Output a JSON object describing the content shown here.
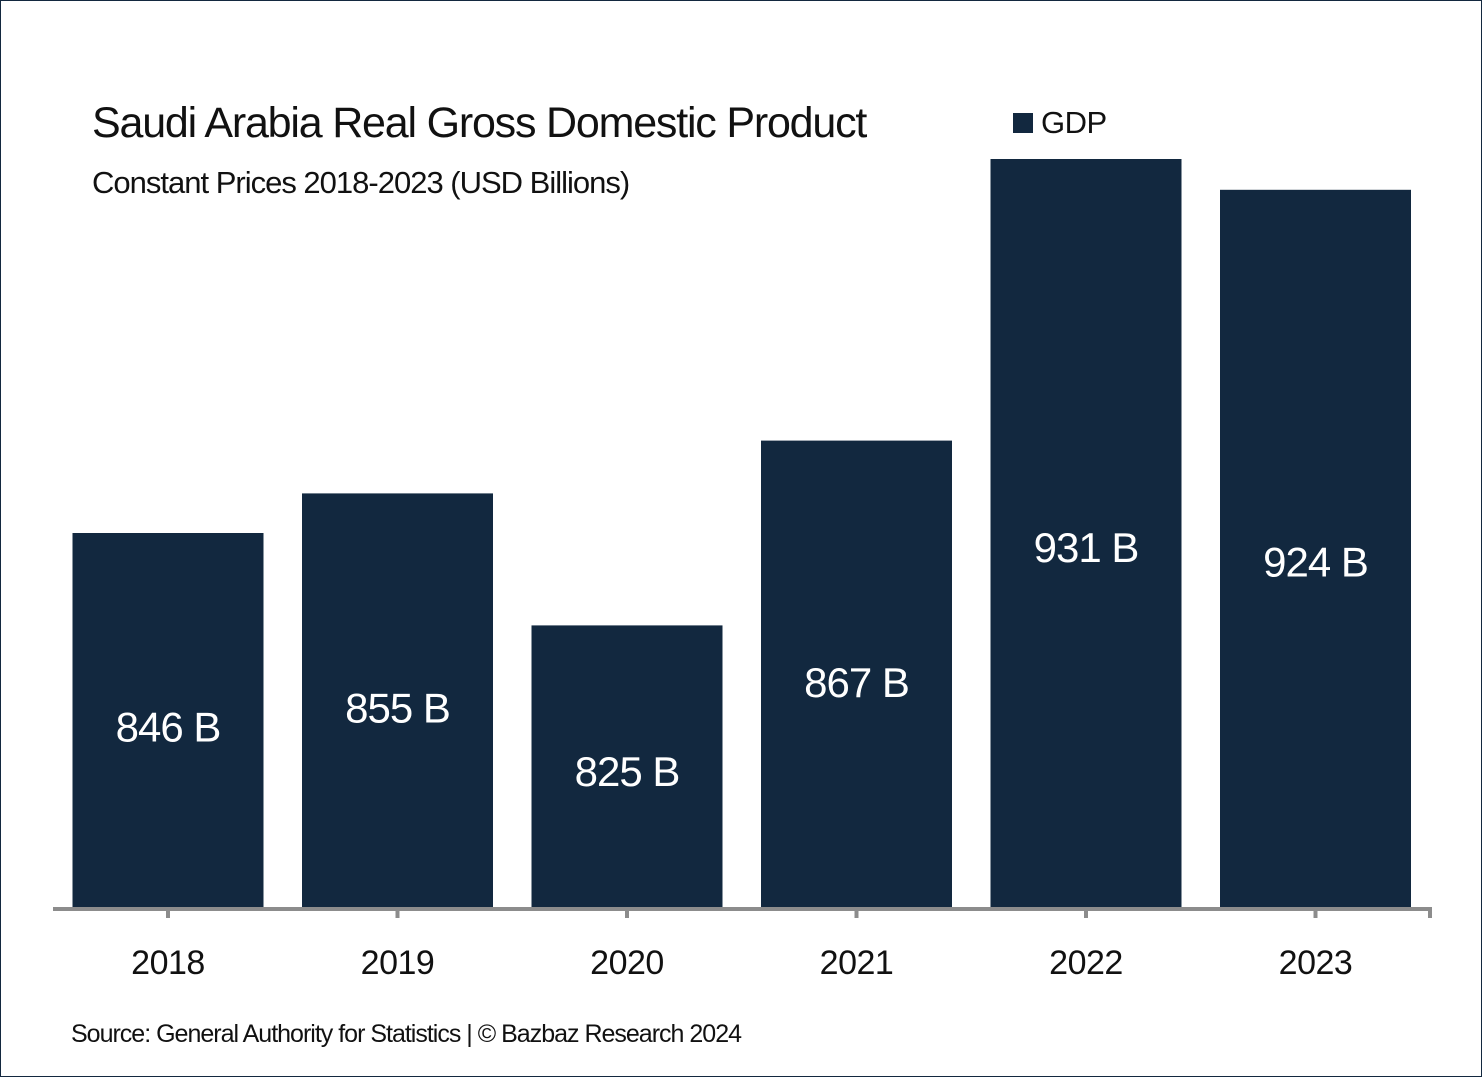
{
  "chart_data": {
    "type": "bar",
    "title": "Saudi Arabia Real Gross Domestic Product",
    "subtitle": "Constant Prices 2018-2023 (USD Billions)",
    "xlabel": "",
    "ylabel": "",
    "categories": [
      "2018",
      "2019",
      "2020",
      "2021",
      "2022",
      "2023"
    ],
    "series": [
      {
        "name": "GDP",
        "color": "#12283f",
        "values": [
          846,
          855,
          825,
          867,
          931,
          924
        ],
        "data_labels": [
          "846 B",
          "855 B",
          "825 B",
          "867 B",
          "931 B",
          "924 B"
        ]
      }
    ],
    "ylim": [
      761,
      945
    ],
    "y_axis_visible": false,
    "grid": false,
    "legend": {
      "position": "top-right",
      "entries": [
        "GDP"
      ]
    },
    "axis_color": "#8c8c8c",
    "label_color": "#ffffff"
  },
  "footer": {
    "source": "Source: General Authority for Statistics | © Bazbaz Research 2024"
  }
}
